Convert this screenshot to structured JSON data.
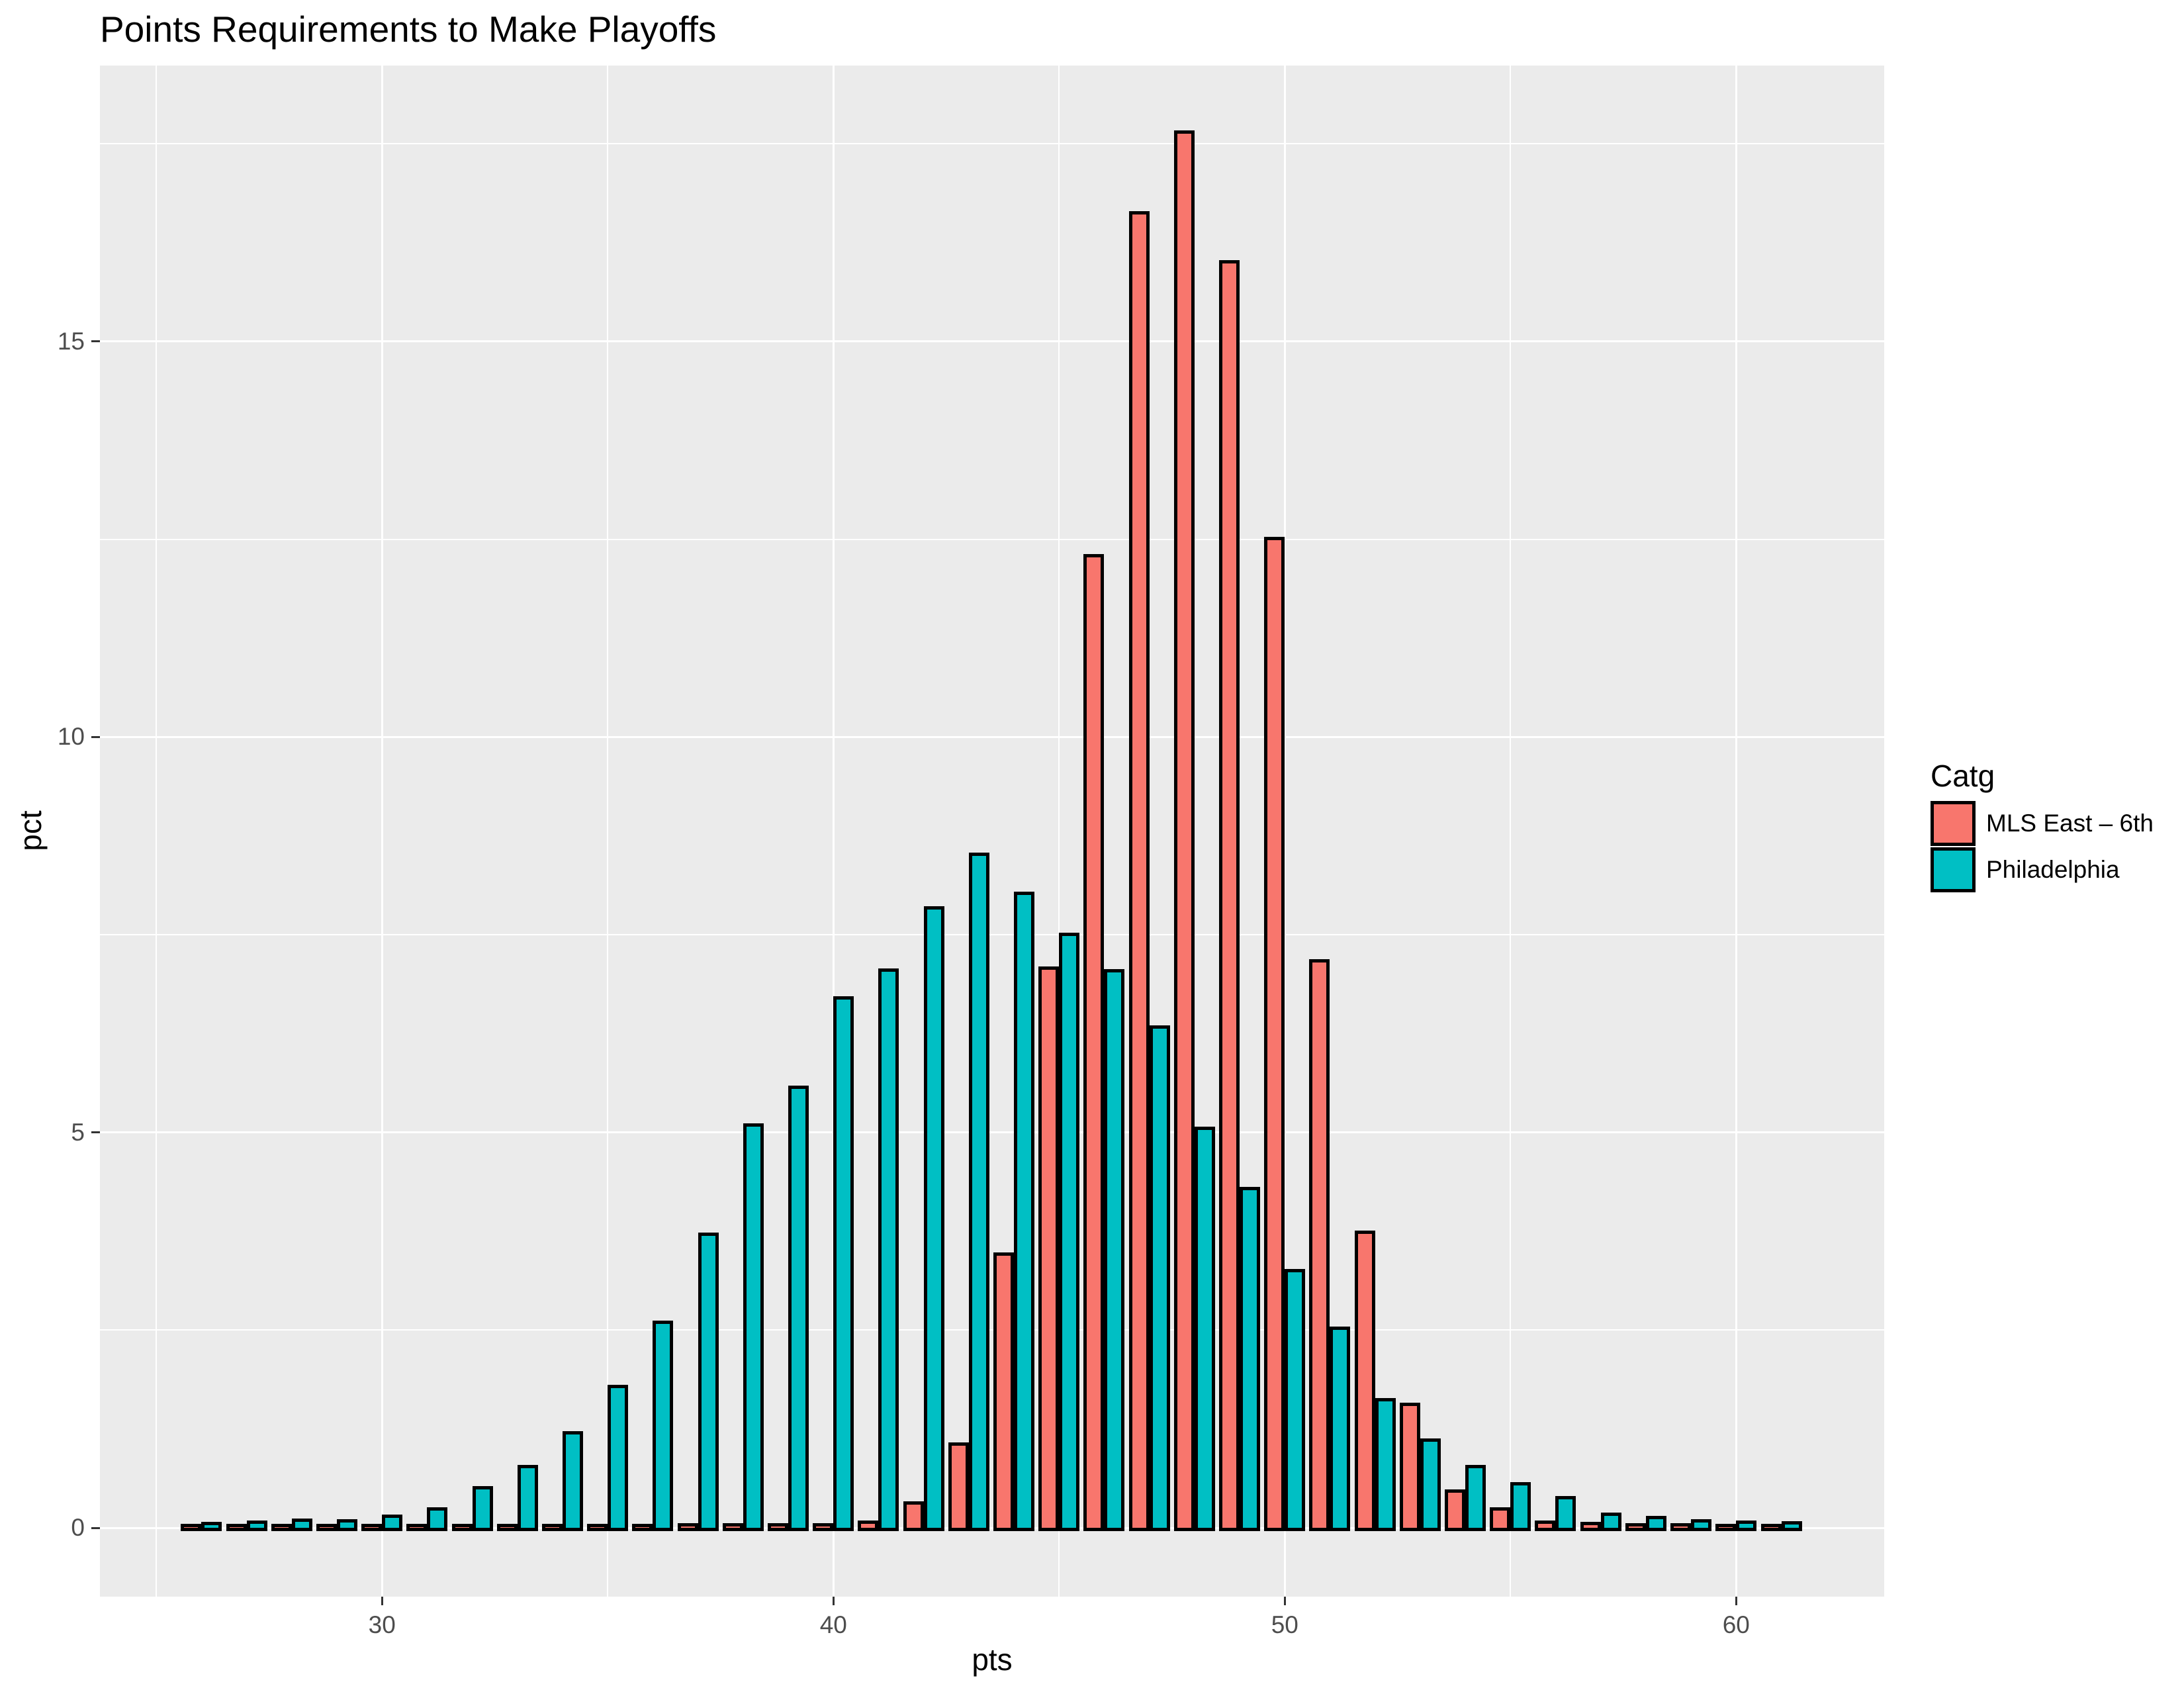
{
  "title": "Points Requirements to Make Playoffs",
  "chart_data": {
    "type": "bar",
    "subtype": "dodged-histogram",
    "title": "Points Requirements to Make Playoffs",
    "xlabel": "pts",
    "ylabel": "pct",
    "legend_title": "Catg",
    "legend_position": "right",
    "grid": true,
    "xlim": [
      23.75,
      63.28
    ],
    "ylim": [
      -0.87,
      18.49
    ],
    "x_major_ticks": [
      30,
      40,
      50,
      60
    ],
    "x_minor_gridlines": [
      25,
      35,
      45,
      55
    ],
    "y_major_ticks": [
      0,
      5,
      10,
      15
    ],
    "y_minor_gridlines": [
      2.5,
      7.5,
      12.5,
      17.5
    ],
    "bin_width": 1,
    "bar_width_pts": 0.45,
    "categories": [
      26,
      27,
      28,
      29,
      30,
      31,
      32,
      33,
      34,
      35,
      36,
      37,
      38,
      39,
      40,
      41,
      42,
      43,
      44,
      45,
      46,
      47,
      48,
      49,
      50,
      51,
      52,
      53,
      54,
      55,
      56,
      57,
      58,
      59,
      60,
      61
    ],
    "series": [
      {
        "name": "MLS East – 6th",
        "color": "#F8766D",
        "values": [
          0.01,
          0.01,
          0.01,
          0.01,
          0.01,
          0.01,
          0.01,
          0.01,
          0.01,
          0.01,
          0.01,
          0.02,
          0.02,
          0.02,
          0.02,
          0.05,
          0.29,
          1.04,
          3.44,
          7.06,
          12.27,
          16.61,
          17.63,
          15.99,
          12.49,
          7.15,
          3.72,
          1.54,
          0.44,
          0.22,
          0.05,
          0.03,
          0.02,
          0.02,
          0.01,
          0.01
        ]
      },
      {
        "name": "Philadelphia",
        "color": "#00BFC4",
        "values": [
          0.03,
          0.05,
          0.08,
          0.07,
          0.13,
          0.22,
          0.49,
          0.75,
          1.18,
          1.77,
          2.58,
          3.69,
          5.07,
          5.55,
          6.68,
          7.03,
          7.82,
          8.5,
          8.0,
          7.48,
          7.02,
          6.31,
          5.03,
          4.27,
          3.23,
          2.5,
          1.6,
          1.09,
          0.75,
          0.54,
          0.36,
          0.15,
          0.11,
          0.07,
          0.05,
          0.04
        ]
      }
    ],
    "colors": {
      "panel_background": "#EBEBEB",
      "gridline": "#FFFFFF",
      "bar_outline": "#000000",
      "tick_mark": "#333333",
      "tick_label": "#4D4D4D",
      "text": "#000000",
      "page_background": "#FFFFFF"
    }
  }
}
